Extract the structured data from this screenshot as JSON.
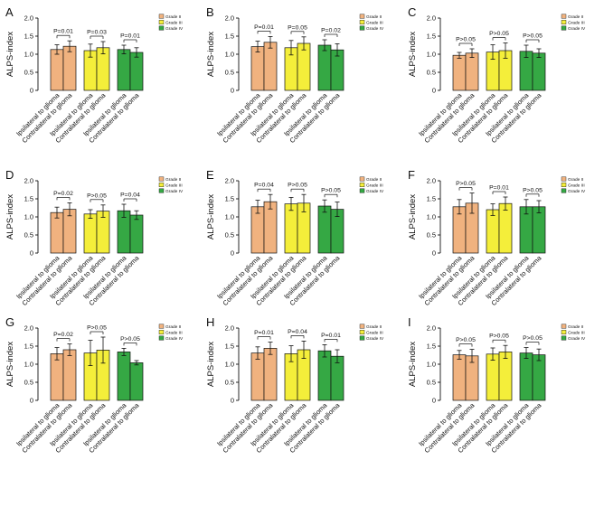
{
  "colors": {
    "grade2": "#f0b27f",
    "grade3": "#f4ee3a",
    "grade4": "#35a844",
    "axis": "#111111"
  },
  "chart_data": [
    {
      "panel": "A",
      "type": "bar",
      "ylabel": "ALPS-index",
      "ylim": [
        0,
        2.0
      ],
      "yticks": [
        "0",
        "0.5",
        "1.0",
        "1.5",
        "2.0"
      ],
      "categories": [
        "Ipsilateral to glioma",
        "Contralateral to glioma",
        "Ipsilateral to glioma",
        "Contralateral to glioma",
        "Ipsilateral to glioma",
        "Contralateral to glioma"
      ],
      "groups": [
        "Grade II",
        "Grade II",
        "Grade III",
        "Grade III",
        "Grade IV",
        "Grade IV"
      ],
      "values": [
        1.13,
        1.22,
        1.1,
        1.18,
        1.13,
        1.05
      ],
      "errors": [
        0.13,
        0.15,
        0.18,
        0.17,
        0.12,
        0.13
      ],
      "pvalues": [
        "P=0.01",
        "P=0.03",
        "P=0.01"
      ],
      "legend": [
        "Grade II",
        "Grade III",
        "Grade IV"
      ]
    },
    {
      "panel": "B",
      "type": "bar",
      "ylabel": "ALPS-index",
      "ylim": [
        0,
        2.0
      ],
      "yticks": [
        "0",
        "0.5",
        "1.0",
        "1.5",
        "2.0"
      ],
      "categories": [
        "Ipsilateral to glioma",
        "Contralateral to glioma",
        "Ipsilateral to glioma",
        "Contralateral to glioma",
        "Ipsilateral to glioma",
        "Contralateral to glioma"
      ],
      "groups": [
        "Grade II",
        "Grade II",
        "Grade III",
        "Grade III",
        "Grade IV",
        "Grade IV"
      ],
      "values": [
        1.21,
        1.33,
        1.18,
        1.3,
        1.25,
        1.12
      ],
      "errors": [
        0.15,
        0.16,
        0.2,
        0.18,
        0.15,
        0.17
      ],
      "pvalues": [
        "P=0.01",
        "P=0.05",
        "P=0.02"
      ],
      "legend": [
        "Grade II",
        "Grade III",
        "Grade IV"
      ]
    },
    {
      "panel": "C",
      "type": "bar",
      "ylabel": "ALPS-index",
      "ylim": [
        0,
        2.0
      ],
      "yticks": [
        "0",
        "0.5",
        "1.0",
        "1.5",
        "2.0"
      ],
      "categories": [
        "Ipsilateral to glioma",
        "Contralateral to glioma",
        "Ipsilateral to glioma",
        "Contralateral to glioma",
        "Ipsilateral to glioma",
        "Contralateral to glioma"
      ],
      "groups": [
        "Grade II",
        "Grade II",
        "Grade III",
        "Grade III",
        "Grade IV",
        "Grade IV"
      ],
      "values": [
        0.97,
        1.03,
        1.06,
        1.1,
        1.08,
        1.03
      ],
      "errors": [
        0.08,
        0.12,
        0.2,
        0.21,
        0.17,
        0.12
      ],
      "pvalues": [
        "P>0.05",
        "P>0.05",
        "P>0.05"
      ],
      "legend": [
        "Grade II",
        "Grade III",
        "Grade IV"
      ]
    },
    {
      "panel": "D",
      "type": "bar",
      "ylabel": "ALPS-index",
      "ylim": [
        0,
        2.0
      ],
      "yticks": [
        "0",
        "0.5",
        "1.0",
        "1.5",
        "2.0"
      ],
      "categories": [
        "Ipsilateral to glioma",
        "Contralateral to glioma",
        "Ipsilateral to glioma",
        "Contralateral to glioma",
        "Ipsilateral to glioma",
        "Contralateral to glioma"
      ],
      "groups": [
        "Grade II",
        "Grade II",
        "Grade III",
        "Grade III",
        "Grade IV",
        "Grade IV"
      ],
      "values": [
        1.12,
        1.21,
        1.08,
        1.16,
        1.17,
        1.05
      ],
      "errors": [
        0.15,
        0.18,
        0.12,
        0.17,
        0.18,
        0.12
      ],
      "pvalues": [
        "P=0.02",
        "P>0.05",
        "P=0.04"
      ],
      "legend": [
        "Grade II",
        "Grade III",
        "Grade IV"
      ]
    },
    {
      "panel": "E",
      "type": "bar",
      "ylabel": "ALPS-index",
      "ylim": [
        0,
        2.0
      ],
      "yticks": [
        "0",
        "0.5",
        "1.0",
        "1.5",
        "2.0"
      ],
      "categories": [
        "Ipsilateral to glioma",
        "Contralateral to glioma",
        "Ipsilateral to glioma",
        "Contralateral to glioma",
        "Ipsilateral to glioma",
        "Contralateral to glioma"
      ],
      "groups": [
        "Grade II",
        "Grade II",
        "Grade III",
        "Grade III",
        "Grade IV",
        "Grade IV"
      ],
      "values": [
        1.28,
        1.42,
        1.36,
        1.38,
        1.3,
        1.21
      ],
      "errors": [
        0.18,
        0.2,
        0.18,
        0.24,
        0.17,
        0.2
      ],
      "pvalues": [
        "P=0.04",
        "P>0.05",
        "P>0.05"
      ],
      "legend": [
        "Grade II",
        "Grade III",
        "Grade IV"
      ]
    },
    {
      "panel": "F",
      "type": "bar",
      "ylabel": "ALPS-index",
      "ylim": [
        0,
        2.0
      ],
      "yticks": [
        "0",
        "0.5",
        "1.0",
        "1.5",
        "2.0"
      ],
      "categories": [
        "Ipsilateral to glioma",
        "Contralateral to glioma",
        "Ipsilateral to glioma",
        "Contralateral to glioma",
        "Ipsilateral to glioma",
        "Contralateral to glioma"
      ],
      "groups": [
        "Grade II",
        "Grade II",
        "Grade III",
        "Grade III",
        "Grade IV",
        "Grade IV"
      ],
      "values": [
        1.28,
        1.38,
        1.2,
        1.37,
        1.28,
        1.28
      ],
      "errors": [
        0.2,
        0.28,
        0.16,
        0.18,
        0.2,
        0.17
      ],
      "pvalues": [
        "P>0.05",
        "P=0.01",
        "P>0.05"
      ],
      "legend": [
        "Grade II",
        "Grade III",
        "Grade IV"
      ]
    },
    {
      "panel": "G",
      "type": "bar",
      "ylabel": "ALPS-index",
      "ylim": [
        0,
        2.0
      ],
      "yticks": [
        "0",
        "0.5",
        "1.0",
        "1.5",
        "2.0"
      ],
      "categories": [
        "Ipsilateral to glioma",
        "Contralateral to glioma",
        "Ipsilateral to glioma",
        "Contralateral to glioma",
        "Ipsilateral to glioma",
        "Contralateral to glioma"
      ],
      "groups": [
        "Grade II",
        "Grade II",
        "Grade III",
        "Grade III",
        "Grade IV",
        "Grade IV"
      ],
      "values": [
        1.29,
        1.4,
        1.31,
        1.39,
        1.34,
        1.04
      ],
      "errors": [
        0.17,
        0.16,
        0.35,
        0.36,
        0.1,
        0.06
      ],
      "pvalues": [
        "P=0.02",
        "P>0.05",
        "P>0.05"
      ],
      "legend": [
        "Grade II",
        "Grade III",
        "Grade IV"
      ]
    },
    {
      "panel": "H",
      "type": "bar",
      "ylabel": "ALPS-index",
      "ylim": [
        0,
        2.0
      ],
      "yticks": [
        "0",
        "0.5",
        "1.0",
        "1.5",
        "2.0"
      ],
      "categories": [
        "Ipsilateral to glioma",
        "Contralateral to glioma",
        "Ipsilateral to glioma",
        "Contralateral to glioma",
        "Ipsilateral to glioma",
        "Contralateral to glioma"
      ],
      "groups": [
        "Grade II",
        "Grade II",
        "Grade III",
        "Grade III",
        "Grade IV",
        "Grade IV"
      ],
      "values": [
        1.31,
        1.44,
        1.29,
        1.4,
        1.37,
        1.22
      ],
      "errors": [
        0.17,
        0.17,
        0.22,
        0.24,
        0.17,
        0.18
      ],
      "pvalues": [
        "P=0.01",
        "P=0.04",
        "P=0.01"
      ],
      "legend": [
        "Grade II",
        "Grade III",
        "Grade IV"
      ]
    },
    {
      "panel": "I",
      "type": "bar",
      "ylabel": "ALPS-index",
      "ylim": [
        0,
        2.0
      ],
      "yticks": [
        "0",
        "0.5",
        "1.0",
        "1.5",
        "2.0"
      ],
      "categories": [
        "Ipsilateral to glioma",
        "Contralateral to glioma",
        "Ipsilateral to glioma",
        "Contralateral to glioma",
        "Ipsilateral to glioma",
        "Contralateral to glioma"
      ],
      "groups": [
        "Grade II",
        "Grade II",
        "Grade III",
        "Grade III",
        "Grade IV",
        "Grade IV"
      ],
      "values": [
        1.26,
        1.23,
        1.28,
        1.34,
        1.31,
        1.26
      ],
      "errors": [
        0.12,
        0.18,
        0.17,
        0.18,
        0.15,
        0.16
      ],
      "pvalues": [
        "P>0.05",
        "P>0.05",
        "P>0.05"
      ],
      "legend": [
        "Grade II",
        "Grade III",
        "Grade IV"
      ]
    }
  ]
}
